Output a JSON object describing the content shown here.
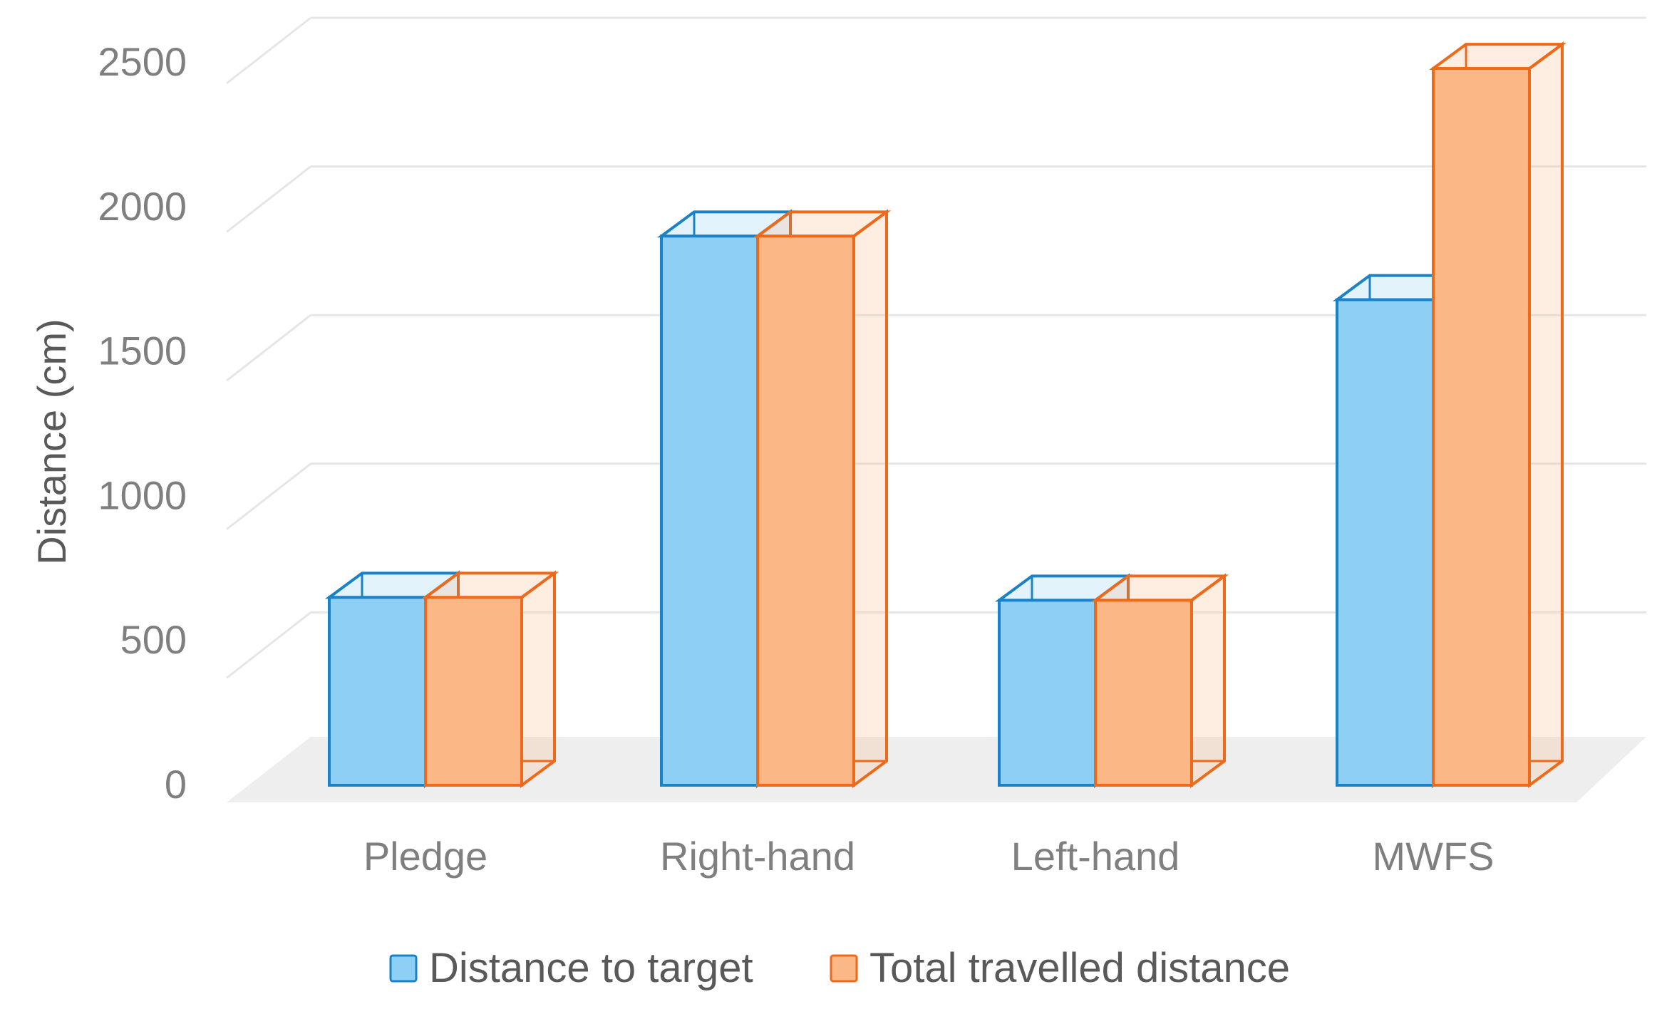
{
  "chart_data": {
    "type": "bar",
    "style": "3d-clustered-column",
    "categories": [
      "Pledge",
      "Right-hand",
      "Left-hand",
      "MWFS"
    ],
    "series": [
      {
        "name": "Distance to target",
        "values": [
          650,
          1900,
          640,
          1680
        ],
        "color": "#8ecff5",
        "edge_color": "#1a82c8"
      },
      {
        "name": "Total travelled distance",
        "values": [
          650,
          1900,
          640,
          2480
        ],
        "color": "#fbb786",
        "edge_color": "#ee6a1a"
      }
    ],
    "title": "",
    "xlabel": "",
    "ylabel": "Distance (cm)",
    "ylim": [
      0,
      2500
    ],
    "yticks": [
      0,
      500,
      1000,
      1500,
      2000,
      2500
    ],
    "grid": true,
    "legend": "bottom"
  }
}
